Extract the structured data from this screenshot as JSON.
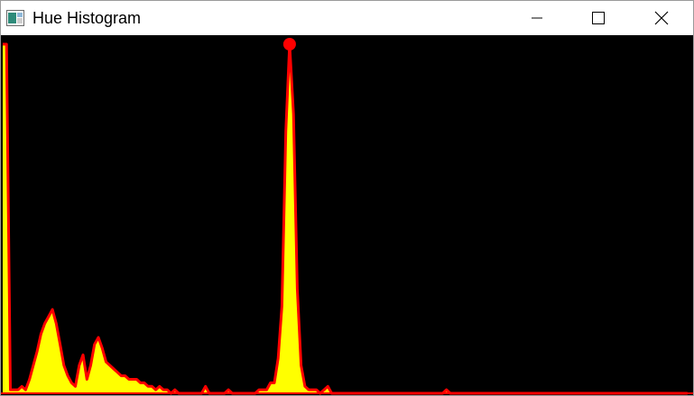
{
  "window": {
    "title": "Hue Histogram",
    "icon": "app-window-icon",
    "controls": {
      "minimize_icon": "minimize-icon",
      "maximize_icon": "maximize-icon",
      "close_icon": "close-icon"
    }
  },
  "colors": {
    "background": "#000000",
    "curve": "#ff0000",
    "fill": "#ffff00"
  },
  "chart_data": {
    "type": "area",
    "xlim": [
      0,
      180
    ],
    "ylim": [
      0,
      1
    ],
    "peak_marker": true,
    "series": [
      {
        "values": [
          [
            0,
            1.0
          ],
          [
            1,
            1.0
          ],
          [
            2,
            0.01
          ],
          [
            3,
            0.01
          ],
          [
            4,
            0.01
          ],
          [
            5,
            0.02
          ],
          [
            6,
            0.01
          ],
          [
            7,
            0.04
          ],
          [
            8,
            0.08
          ],
          [
            9,
            0.12
          ],
          [
            10,
            0.17
          ],
          [
            11,
            0.2
          ],
          [
            12,
            0.22
          ],
          [
            13,
            0.24
          ],
          [
            14,
            0.2
          ],
          [
            15,
            0.14
          ],
          [
            16,
            0.08
          ],
          [
            17,
            0.05
          ],
          [
            18,
            0.03
          ],
          [
            19,
            0.02
          ],
          [
            20,
            0.08
          ],
          [
            21,
            0.11
          ],
          [
            22,
            0.04
          ],
          [
            23,
            0.08
          ],
          [
            24,
            0.14
          ],
          [
            25,
            0.16
          ],
          [
            26,
            0.13
          ],
          [
            27,
            0.09
          ],
          [
            28,
            0.08
          ],
          [
            29,
            0.07
          ],
          [
            30,
            0.06
          ],
          [
            31,
            0.05
          ],
          [
            32,
            0.05
          ],
          [
            33,
            0.04
          ],
          [
            34,
            0.04
          ],
          [
            35,
            0.04
          ],
          [
            36,
            0.03
          ],
          [
            37,
            0.03
          ],
          [
            38,
            0.02
          ],
          [
            39,
            0.02
          ],
          [
            40,
            0.01
          ],
          [
            41,
            0.02
          ],
          [
            42,
            0.01
          ],
          [
            43,
            0.01
          ],
          [
            44,
            0.0
          ],
          [
            45,
            0.01
          ],
          [
            46,
            0.0
          ],
          [
            47,
            0.0
          ],
          [
            48,
            0.0
          ],
          [
            49,
            0.0
          ],
          [
            50,
            0.0
          ],
          [
            51,
            0.0
          ],
          [
            52,
            0.0
          ],
          [
            53,
            0.02
          ],
          [
            54,
            0.0
          ],
          [
            55,
            0.0
          ],
          [
            56,
            0.0
          ],
          [
            57,
            0.0
          ],
          [
            58,
            0.0
          ],
          [
            59,
            0.01
          ],
          [
            60,
            0.0
          ],
          [
            61,
            0.0
          ],
          [
            62,
            0.0
          ],
          [
            63,
            0.0
          ],
          [
            64,
            0.0
          ],
          [
            65,
            0.0
          ],
          [
            66,
            0.0
          ],
          [
            67,
            0.01
          ],
          [
            68,
            0.01
          ],
          [
            69,
            0.01
          ],
          [
            70,
            0.03
          ],
          [
            71,
            0.03
          ],
          [
            72,
            0.1
          ],
          [
            73,
            0.25
          ],
          [
            74,
            0.75
          ],
          [
            75,
            1.0
          ],
          [
            76,
            0.8
          ],
          [
            77,
            0.3
          ],
          [
            78,
            0.08
          ],
          [
            79,
            0.02
          ],
          [
            80,
            0.01
          ],
          [
            81,
            0.01
          ],
          [
            82,
            0.01
          ],
          [
            83,
            0.0
          ],
          [
            84,
            0.01
          ],
          [
            85,
            0.02
          ],
          [
            86,
            0.0
          ],
          [
            87,
            0.0
          ],
          [
            88,
            0.0
          ],
          [
            89,
            0.0
          ],
          [
            90,
            0.0
          ],
          [
            100,
            0.0
          ],
          [
            110,
            0.0
          ],
          [
            115,
            0.0
          ],
          [
            116,
            0.01
          ],
          [
            117,
            0.0
          ],
          [
            120,
            0.0
          ],
          [
            130,
            0.0
          ],
          [
            140,
            0.0
          ],
          [
            150,
            0.0
          ],
          [
            160,
            0.0
          ],
          [
            170,
            0.0
          ],
          [
            179,
            0.0
          ]
        ]
      }
    ]
  }
}
